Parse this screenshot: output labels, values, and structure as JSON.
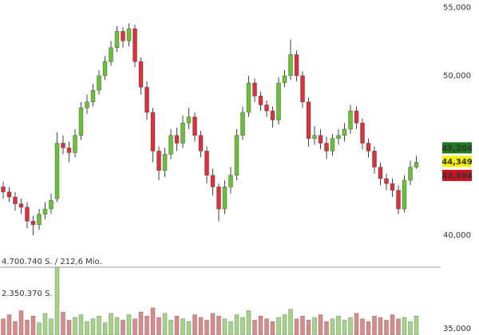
{
  "chart_data": {
    "type": "candlestick",
    "log_scale": true,
    "ylim": [
      35000,
      55000
    ],
    "yticks": [
      {
        "value": 55000,
        "label": "55,000"
      },
      {
        "value": 50000,
        "label": "50,000"
      },
      {
        "value": 40000,
        "label": "40,000"
      },
      {
        "value": 35000,
        "label": "35,000"
      }
    ],
    "up_color": "#6cbf3a",
    "down_color": "#d8323c",
    "volume_up_color": "#a5d486",
    "volume_down_color": "#d98a8a",
    "open": [
      42800,
      42500,
      42200,
      41800,
      41600,
      40800,
      40600,
      41200,
      41500,
      42100,
      45500,
      45200,
      44900,
      46000,
      47800,
      48200,
      49000,
      50000,
      51000,
      52000,
      53200,
      52500,
      53400,
      51000,
      49200,
      47500,
      45000,
      43800,
      44800,
      46000,
      45500,
      46800,
      47200,
      46000,
      45000,
      43500,
      42800,
      41500,
      42800,
      43500,
      46000,
      47500,
      49500,
      48600,
      48000,
      47600,
      47000,
      49500,
      50000,
      51500,
      50000,
      48200,
      45800,
      46000,
      45500,
      45000,
      45800,
      46000,
      46400,
      47600,
      46800,
      45500,
      45000,
      44000,
      43300,
      43000,
      42600,
      41500,
      43200,
      44000
    ],
    "high": [
      43100,
      42800,
      42500,
      42100,
      41900,
      41100,
      41500,
      41900,
      42400,
      46200,
      46000,
      45600,
      46400,
      48200,
      48700,
      49400,
      50400,
      51400,
      52500,
      53600,
      53500,
      53800,
      53700,
      51300,
      49600,
      47800,
      45300,
      45200,
      46400,
      46500,
      47300,
      47800,
      47500,
      46300,
      45300,
      43900,
      43000,
      43200,
      44000,
      46400,
      47900,
      50000,
      49800,
      48900,
      48300,
      47900,
      49900,
      50400,
      52600,
      51800,
      50300,
      48500,
      46600,
      46400,
      45900,
      46100,
      46400,
      46800,
      48000,
      47900,
      47100,
      45800,
      45300,
      44300,
      43600,
      43300,
      42900,
      43500,
      44400,
      44700
    ],
    "low": [
      42100,
      41900,
      41400,
      41200,
      40400,
      40000,
      40300,
      40900,
      41200,
      41900,
      44800,
      44300,
      44600,
      45700,
      47400,
      47900,
      48700,
      49700,
      50700,
      51700,
      52000,
      52100,
      50600,
      48700,
      47000,
      44300,
      43200,
      43400,
      44500,
      45000,
      45200,
      46400,
      45600,
      44600,
      43000,
      42300,
      40800,
      41200,
      42400,
      43200,
      45700,
      47200,
      48200,
      47600,
      47200,
      46500,
      46700,
      49200,
      49700,
      49600,
      47800,
      45300,
      45400,
      45100,
      44500,
      44700,
      45400,
      45600,
      46100,
      46400,
      45100,
      44600,
      43600,
      42900,
      42600,
      42200,
      41200,
      41300,
      42900,
      43900
    ],
    "close": [
      42500,
      42200,
      41800,
      41600,
      40800,
      40600,
      41200,
      41500,
      42000,
      45500,
      45200,
      44900,
      46000,
      47800,
      48200,
      49000,
      50000,
      51000,
      52000,
      53200,
      52500,
      53400,
      51000,
      49200,
      47500,
      45000,
      43800,
      44800,
      46000,
      45500,
      46800,
      47200,
      46000,
      45000,
      43500,
      42800,
      41500,
      42800,
      43500,
      46000,
      47500,
      49500,
      48600,
      48000,
      47600,
      47000,
      49500,
      50000,
      51500,
      50000,
      48200,
      45800,
      46000,
      45500,
      45000,
      45800,
      46000,
      46400,
      47600,
      46800,
      45500,
      45000,
      44000,
      43300,
      43000,
      42600,
      41500,
      43200,
      44000,
      44300
    ],
    "volume": [
      900000,
      1200000,
      700000,
      1500000,
      800000,
      1100000,
      600000,
      1300000,
      900000,
      4700740,
      1400000,
      800000,
      1000000,
      1200000,
      700000,
      900000,
      1100000,
      600000,
      1300000,
      1000000,
      800000,
      1200000,
      900000,
      1400000,
      1100000,
      1700000,
      1000000,
      1300000,
      800000,
      1100000,
      900000,
      700000,
      1200000,
      1000000,
      800000,
      1300000,
      1100000,
      900000,
      700000,
      1200000,
      1000000,
      1500000,
      800000,
      1100000,
      900000,
      700000,
      1000000,
      1200000,
      1600000,
      900000,
      1100000,
      800000,
      1000000,
      1200000,
      700000,
      900000,
      1100000,
      800000,
      1000000,
      1300000,
      900000,
      700000,
      1100000,
      1000000,
      800000,
      1200000,
      900000,
      1000000,
      700000,
      1100000
    ],
    "volume_lim": [
      0,
      4700740
    ],
    "volume_ticks": [
      {
        "value": 4700740,
        "label": "4.700.740 S. / 212,6 Mio."
      },
      {
        "value": 2350370,
        "label": "2.350.370 S."
      }
    ],
    "price_markers": [
      {
        "value": 45204,
        "label": "45,204",
        "color": "#1f7a1f",
        "text_color": "#ffffff"
      },
      {
        "value": 44349,
        "label": "44,349",
        "color": "#f2f200",
        "text_color": "#000000"
      },
      {
        "value": 43494,
        "label": "43,494",
        "color": "#c8141e",
        "text_color": "#ffffff"
      }
    ]
  }
}
